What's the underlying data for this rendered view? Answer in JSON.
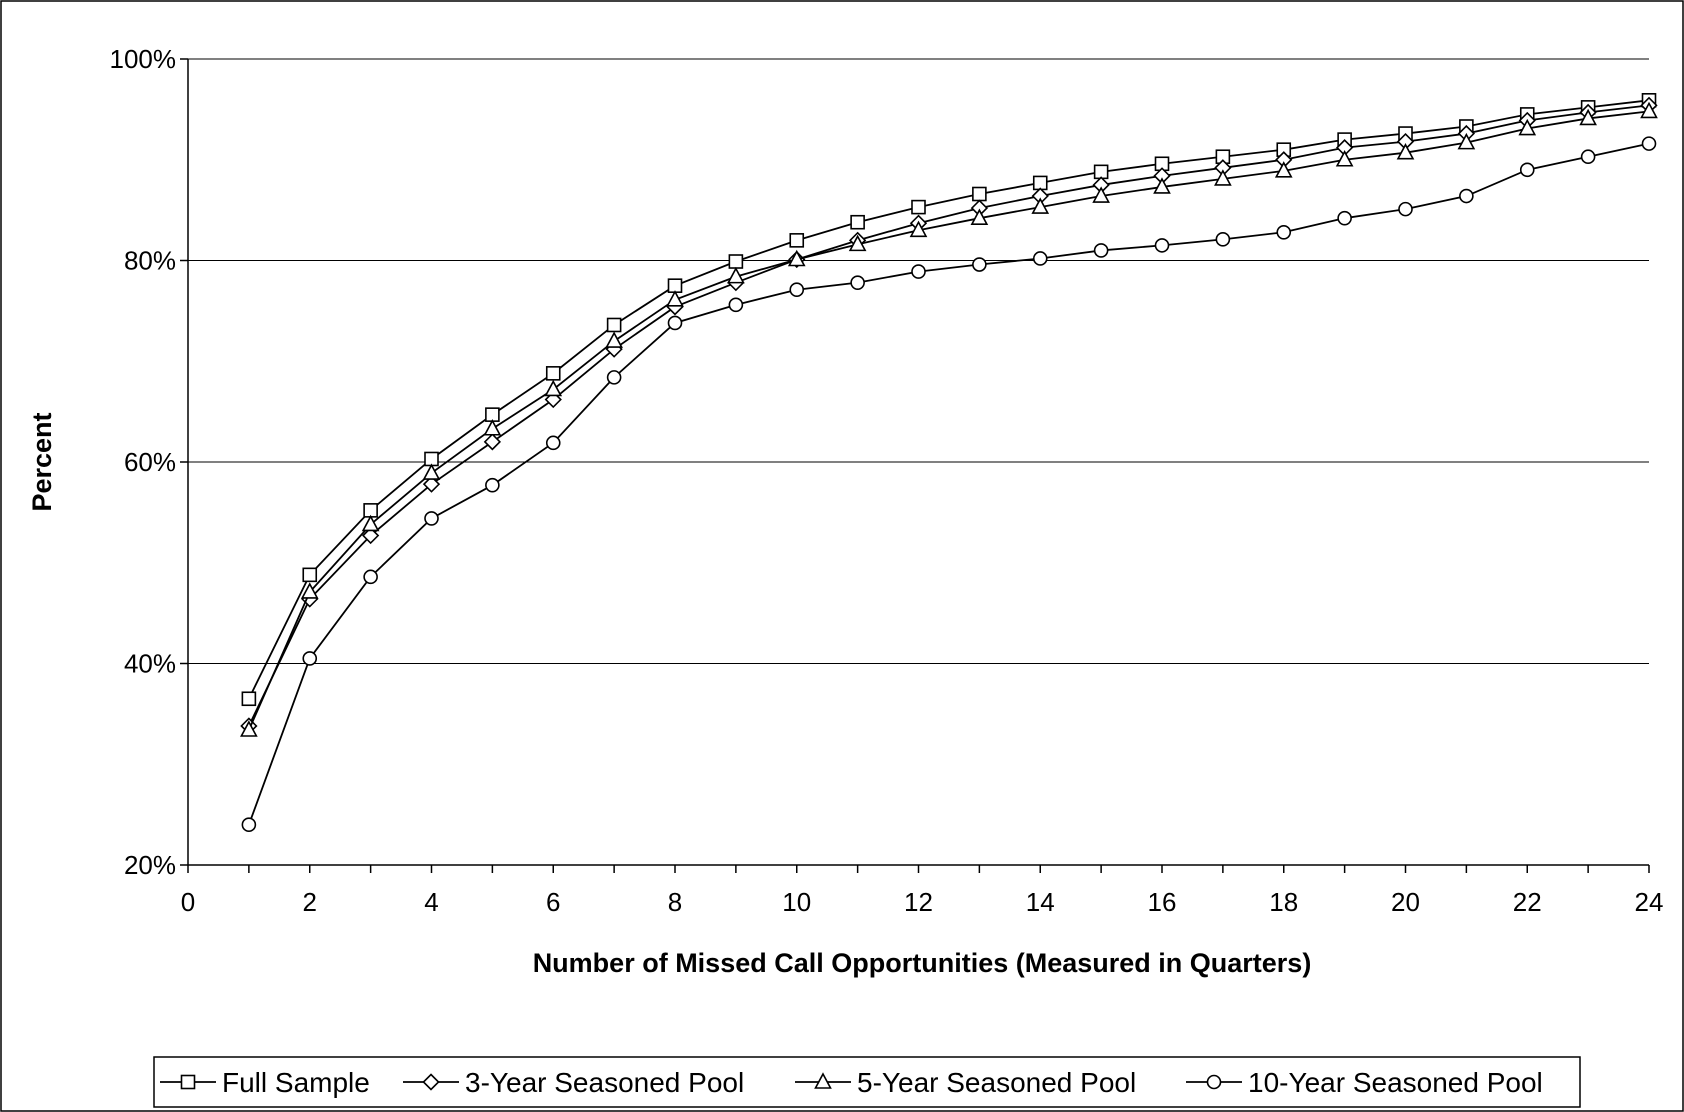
{
  "chart_data": {
    "type": "line",
    "title": "",
    "xlabel": "Number of Missed Call Opportunities (Measured in Quarters)",
    "ylabel": "Percent",
    "xlim": [
      0,
      24
    ],
    "ylim": [
      20,
      100
    ],
    "x_ticks": [
      0,
      2,
      4,
      6,
      8,
      10,
      12,
      14,
      16,
      18,
      20,
      22,
      24
    ],
    "x_tick_labels": [
      "0",
      "2",
      "4",
      "6",
      "8",
      "10",
      "12",
      "14",
      "16",
      "18",
      "20",
      "22",
      "24"
    ],
    "y_ticks": [
      20,
      40,
      60,
      80,
      100
    ],
    "y_tick_labels": [
      "20%",
      "40%",
      "60%",
      "80%",
      "100%"
    ],
    "grid": "horizontal",
    "legend_position": "bottom",
    "x": [
      1,
      2,
      3,
      4,
      5,
      6,
      7,
      8,
      9,
      10,
      11,
      12,
      13,
      14,
      15,
      16,
      17,
      18,
      19,
      20,
      21,
      22,
      23,
      24
    ],
    "series": [
      {
        "name": "Full Sample",
        "marker": "square",
        "values": [
          36.5,
          48.8,
          55.2,
          60.3,
          64.7,
          68.8,
          73.6,
          77.5,
          79.9,
          82.0,
          83.8,
          85.3,
          86.6,
          87.7,
          88.8,
          89.6,
          90.3,
          91.0,
          92.0,
          92.6,
          93.3,
          94.5,
          95.2,
          95.9
        ]
      },
      {
        "name": "3-Year Seasoned Pool",
        "marker": "diamond",
        "values": [
          33.8,
          46.4,
          52.7,
          57.8,
          62.0,
          66.2,
          71.2,
          75.4,
          77.8,
          80.1,
          82.0,
          83.7,
          85.2,
          86.4,
          87.5,
          88.4,
          89.2,
          90.0,
          91.2,
          91.8,
          92.6,
          93.9,
          94.7,
          95.4
        ]
      },
      {
        "name": "5-Year Seasoned Pool",
        "marker": "triangle",
        "values": [
          33.4,
          47.1,
          53.8,
          58.9,
          63.3,
          67.2,
          72.0,
          76.1,
          78.4,
          80.1,
          81.6,
          83.0,
          84.2,
          85.3,
          86.4,
          87.3,
          88.1,
          88.9,
          90.0,
          90.7,
          91.7,
          93.1,
          94.1,
          94.8
        ]
      },
      {
        "name": "10-Year Seasoned Pool",
        "marker": "circle",
        "values": [
          24.0,
          40.5,
          48.6,
          54.4,
          57.7,
          61.9,
          68.4,
          73.8,
          75.6,
          77.1,
          77.8,
          78.9,
          79.6,
          80.2,
          81.0,
          81.5,
          82.1,
          82.8,
          84.2,
          85.1,
          86.4,
          89.0,
          90.3,
          91.6
        ]
      }
    ]
  }
}
